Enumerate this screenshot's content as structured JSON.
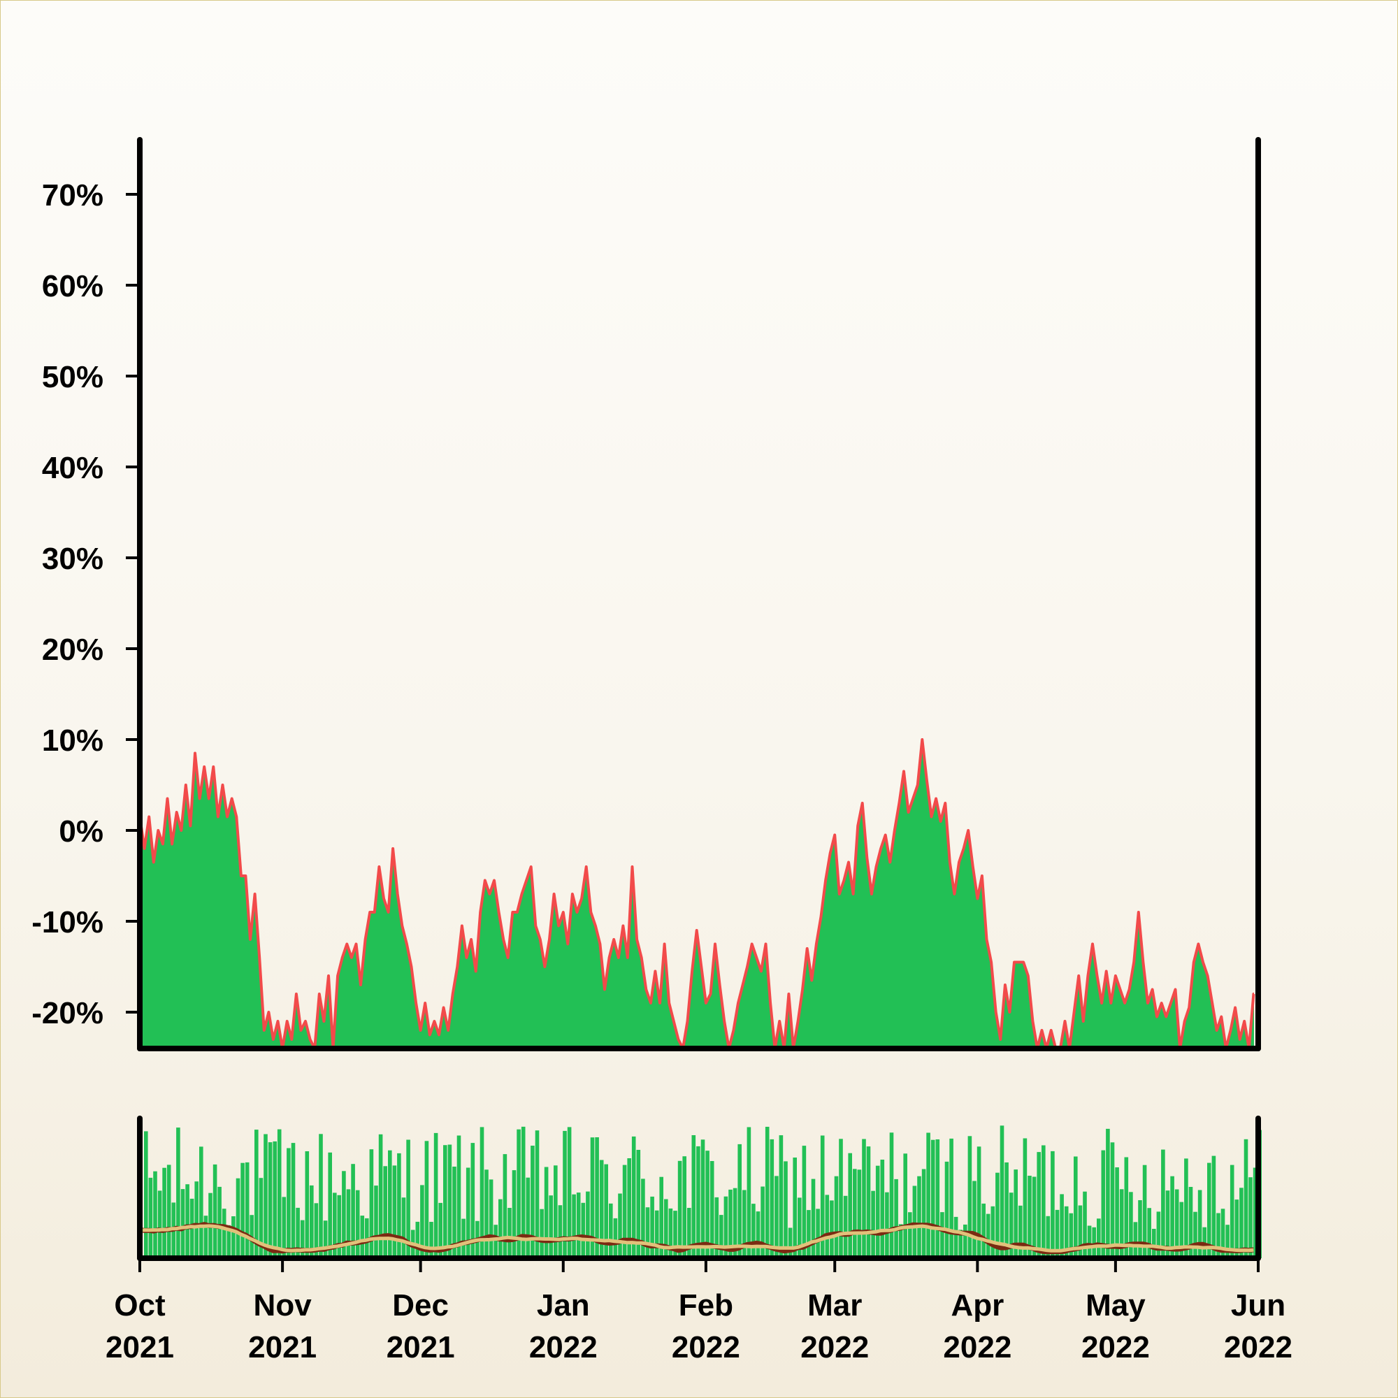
{
  "chart_data": {
    "type": "area",
    "title": "",
    "xlabel": "",
    "ylabel": "",
    "x_range": [
      "2021-10-01",
      "2022-06-01"
    ],
    "ylim": [
      -24,
      76
    ],
    "y_ticks": [
      {
        "value": 70,
        "label": "70%"
      },
      {
        "value": 60,
        "label": "60%"
      },
      {
        "value": 50,
        "label": "50%"
      },
      {
        "value": 40,
        "label": "40%"
      },
      {
        "value": 30,
        "label": "30%"
      },
      {
        "value": 20,
        "label": "20%"
      },
      {
        "value": 10,
        "label": "10%"
      },
      {
        "value": 0,
        "label": "0%"
      },
      {
        "value": -10,
        "label": "-10%"
      },
      {
        "value": -20,
        "label": "-20%"
      }
    ],
    "x_ticks": [
      {
        "date": "2021-10-01",
        "month": "Oct",
        "year": "2021"
      },
      {
        "date": "2021-11-01",
        "month": "Nov",
        "year": "2021"
      },
      {
        "date": "2021-12-01",
        "month": "Dec",
        "year": "2021"
      },
      {
        "date": "2022-01-01",
        "month": "Jan",
        "year": "2022"
      },
      {
        "date": "2022-02-01",
        "month": "Feb",
        "year": "2022"
      },
      {
        "date": "2022-03-01",
        "month": "Mar",
        "year": "2022"
      },
      {
        "date": "2022-04-01",
        "month": "Apr",
        "year": "2022"
      },
      {
        "date": "2022-05-01",
        "month": "May",
        "year": "2022"
      },
      {
        "date": "2022-06-01",
        "month": "Jun",
        "year": "2022"
      }
    ],
    "series": [
      {
        "type": "area",
        "fill_color": "#22c055",
        "line_color": "#f24a4a",
        "points": [
          [
            "2021-10-01",
            1.5
          ],
          [
            "2021-10-02",
            -2
          ],
          [
            "2021-10-03",
            1.5
          ],
          [
            "2021-10-04",
            -3.5
          ],
          [
            "2021-10-05",
            0
          ],
          [
            "2021-10-06",
            -1.5
          ],
          [
            "2021-10-07",
            3.5
          ],
          [
            "2021-10-08",
            -1.5
          ],
          [
            "2021-10-09",
            2
          ],
          [
            "2021-10-10",
            0
          ],
          [
            "2021-10-11",
            5
          ],
          [
            "2021-10-12",
            0.5
          ],
          [
            "2021-10-13",
            8.5
          ],
          [
            "2021-10-14",
            3.5
          ],
          [
            "2021-10-15",
            7
          ],
          [
            "2021-10-16",
            3.5
          ],
          [
            "2021-10-17",
            7
          ],
          [
            "2021-10-18",
            1.5
          ],
          [
            "2021-10-19",
            5
          ],
          [
            "2021-10-20",
            1.5
          ],
          [
            "2021-10-21",
            3.5
          ],
          [
            "2021-10-22",
            1.5
          ],
          [
            "2021-10-23",
            -5
          ],
          [
            "2021-10-24",
            -5
          ],
          [
            "2021-10-25",
            -12
          ],
          [
            "2021-10-26",
            -7
          ],
          [
            "2021-10-27",
            -14
          ],
          [
            "2021-10-28",
            -22
          ],
          [
            "2021-10-29",
            -20
          ],
          [
            "2021-10-30",
            -23
          ],
          [
            "2021-10-31",
            -21
          ],
          [
            "2021-11-01",
            -24
          ],
          [
            "2021-11-02",
            -21
          ],
          [
            "2021-11-03",
            -23
          ],
          [
            "2021-11-04",
            -18
          ],
          [
            "2021-11-05",
            -22
          ],
          [
            "2021-11-06",
            -21
          ],
          [
            "2021-11-07",
            -23
          ],
          [
            "2021-11-08",
            -24
          ],
          [
            "2021-11-09",
            -18
          ],
          [
            "2021-11-10",
            -21
          ],
          [
            "2021-11-11",
            -16
          ],
          [
            "2021-11-12",
            -24
          ],
          [
            "2021-11-13",
            -16
          ],
          [
            "2021-11-14",
            -14
          ],
          [
            "2021-11-15",
            -12.5
          ],
          [
            "2021-11-16",
            -14
          ],
          [
            "2021-11-17",
            -12.5
          ],
          [
            "2021-11-18",
            -17
          ],
          [
            "2021-11-19",
            -12
          ],
          [
            "2021-11-20",
            -9
          ],
          [
            "2021-11-21",
            -9
          ],
          [
            "2021-11-22",
            -4
          ],
          [
            "2021-11-23",
            -7.5
          ],
          [
            "2021-11-24",
            -9
          ],
          [
            "2021-11-25",
            -2
          ],
          [
            "2021-11-26",
            -7
          ],
          [
            "2021-11-27",
            -10.5
          ],
          [
            "2021-11-28",
            -12.5
          ],
          [
            "2021-11-29",
            -15
          ],
          [
            "2021-11-30",
            -19
          ],
          [
            "2021-12-01",
            -22
          ],
          [
            "2021-12-02",
            -19
          ],
          [
            "2021-12-03",
            -22.5
          ],
          [
            "2021-12-04",
            -21
          ],
          [
            "2021-12-05",
            -22.5
          ],
          [
            "2021-12-06",
            -19.5
          ],
          [
            "2021-12-07",
            -22
          ],
          [
            "2021-12-08",
            -18
          ],
          [
            "2021-12-09",
            -15
          ],
          [
            "2021-12-10",
            -10.5
          ],
          [
            "2021-12-11",
            -14
          ],
          [
            "2021-12-12",
            -12
          ],
          [
            "2021-12-13",
            -15.5
          ],
          [
            "2021-12-14",
            -9
          ],
          [
            "2021-12-15",
            -5.5
          ],
          [
            "2021-12-16",
            -7
          ],
          [
            "2021-12-17",
            -5.5
          ],
          [
            "2021-12-18",
            -9
          ],
          [
            "2021-12-19",
            -12
          ],
          [
            "2021-12-20",
            -14
          ],
          [
            "2021-12-21",
            -9
          ],
          [
            "2021-12-22",
            -9
          ],
          [
            "2021-12-23",
            -7
          ],
          [
            "2021-12-24",
            -5.5
          ],
          [
            "2021-12-25",
            -4
          ],
          [
            "2021-12-26",
            -10.5
          ],
          [
            "2021-12-27",
            -12
          ],
          [
            "2021-12-28",
            -15
          ],
          [
            "2021-12-29",
            -12
          ],
          [
            "2021-12-30",
            -7
          ],
          [
            "2021-12-31",
            -10.5
          ],
          [
            "2022-01-01",
            -9
          ],
          [
            "2022-01-02",
            -12.5
          ],
          [
            "2022-01-03",
            -7
          ],
          [
            "2022-01-04",
            -9
          ],
          [
            "2022-01-05",
            -7.5
          ],
          [
            "2022-01-06",
            -4
          ],
          [
            "2022-01-07",
            -9
          ],
          [
            "2022-01-08",
            -10.5
          ],
          [
            "2022-01-09",
            -12.5
          ],
          [
            "2022-01-10",
            -17.5
          ],
          [
            "2022-01-11",
            -14
          ],
          [
            "2022-01-12",
            -12
          ],
          [
            "2022-01-13",
            -14
          ],
          [
            "2022-01-14",
            -10.5
          ],
          [
            "2022-01-15",
            -14
          ],
          [
            "2022-01-16",
            -4
          ],
          [
            "2022-01-17",
            -12
          ],
          [
            "2022-01-18",
            -14
          ],
          [
            "2022-01-19",
            -17.5
          ],
          [
            "2022-01-20",
            -19
          ],
          [
            "2022-01-21",
            -15.5
          ],
          [
            "2022-01-22",
            -19
          ],
          [
            "2022-01-23",
            -12.5
          ],
          [
            "2022-01-24",
            -19
          ],
          [
            "2022-01-25",
            -21
          ],
          [
            "2022-01-26",
            -23
          ],
          [
            "2022-01-27",
            -24
          ],
          [
            "2022-01-28",
            -21
          ],
          [
            "2022-01-29",
            -15.5
          ],
          [
            "2022-01-30",
            -11
          ],
          [
            "2022-01-31",
            -15
          ],
          [
            "2022-02-01",
            -19
          ],
          [
            "2022-02-02",
            -18
          ],
          [
            "2022-02-03",
            -12.5
          ],
          [
            "2022-02-04",
            -17
          ],
          [
            "2022-02-05",
            -21
          ],
          [
            "2022-02-06",
            -24
          ],
          [
            "2022-02-07",
            -22
          ],
          [
            "2022-02-08",
            -19
          ],
          [
            "2022-02-09",
            -17
          ],
          [
            "2022-02-10",
            -15
          ],
          [
            "2022-02-11",
            -12.5
          ],
          [
            "2022-02-12",
            -14
          ],
          [
            "2022-02-13",
            -15.5
          ],
          [
            "2022-02-14",
            -12.5
          ],
          [
            "2022-02-15",
            -19
          ],
          [
            "2022-02-16",
            -24
          ],
          [
            "2022-02-17",
            -21
          ],
          [
            "2022-02-18",
            -24
          ],
          [
            "2022-02-19",
            -18
          ],
          [
            "2022-02-20",
            -24
          ],
          [
            "2022-02-21",
            -21
          ],
          [
            "2022-02-22",
            -17.5
          ],
          [
            "2022-02-23",
            -13
          ],
          [
            "2022-02-24",
            -16.5
          ],
          [
            "2022-02-25",
            -12.5
          ],
          [
            "2022-02-26",
            -9.5
          ],
          [
            "2022-02-27",
            -5.5
          ],
          [
            "2022-02-28",
            -2.5
          ],
          [
            "2022-03-01",
            -0.5
          ],
          [
            "2022-03-02",
            -7
          ],
          [
            "2022-03-03",
            -5.5
          ],
          [
            "2022-03-04",
            -3.5
          ],
          [
            "2022-03-05",
            -7
          ],
          [
            "2022-03-06",
            0.5
          ],
          [
            "2022-03-07",
            3
          ],
          [
            "2022-03-08",
            -3
          ],
          [
            "2022-03-09",
            -7
          ],
          [
            "2022-03-10",
            -4
          ],
          [
            "2022-03-11",
            -2
          ],
          [
            "2022-03-12",
            -0.5
          ],
          [
            "2022-03-13",
            -3.5
          ],
          [
            "2022-03-14",
            0
          ],
          [
            "2022-03-15",
            3
          ],
          [
            "2022-03-16",
            6.5
          ],
          [
            "2022-03-17",
            2
          ],
          [
            "2022-03-18",
            3.5
          ],
          [
            "2022-03-19",
            5
          ],
          [
            "2022-03-20",
            10
          ],
          [
            "2022-03-21",
            5.5
          ],
          [
            "2022-03-22",
            1.5
          ],
          [
            "2022-03-23",
            3.5
          ],
          [
            "2022-03-24",
            1
          ],
          [
            "2022-03-25",
            3
          ],
          [
            "2022-03-26",
            -3.5
          ],
          [
            "2022-03-27",
            -7
          ],
          [
            "2022-03-28",
            -3.5
          ],
          [
            "2022-03-29",
            -2
          ],
          [
            "2022-03-30",
            0
          ],
          [
            "2022-03-31",
            -4
          ],
          [
            "2022-04-01",
            -7.5
          ],
          [
            "2022-04-02",
            -5
          ],
          [
            "2022-04-03",
            -12
          ],
          [
            "2022-04-04",
            -14.5
          ],
          [
            "2022-04-05",
            -20
          ],
          [
            "2022-04-06",
            -23
          ],
          [
            "2022-04-07",
            -17
          ],
          [
            "2022-04-08",
            -20
          ],
          [
            "2022-04-09",
            -14.5
          ],
          [
            "2022-04-10",
            -14.5
          ],
          [
            "2022-04-11",
            -14.5
          ],
          [
            "2022-04-12",
            -16
          ],
          [
            "2022-04-13",
            -21
          ],
          [
            "2022-04-14",
            -24
          ],
          [
            "2022-04-15",
            -22
          ],
          [
            "2022-04-16",
            -24
          ],
          [
            "2022-04-17",
            -22
          ],
          [
            "2022-04-18",
            -24
          ],
          [
            "2022-04-19",
            -24
          ],
          [
            "2022-04-20",
            -21
          ],
          [
            "2022-04-21",
            -24
          ],
          [
            "2022-04-22",
            -20
          ],
          [
            "2022-04-23",
            -16
          ],
          [
            "2022-04-24",
            -21
          ],
          [
            "2022-04-25",
            -16
          ],
          [
            "2022-04-26",
            -12.5
          ],
          [
            "2022-04-27",
            -16
          ],
          [
            "2022-04-28",
            -19
          ],
          [
            "2022-04-29",
            -15.5
          ],
          [
            "2022-04-30",
            -19
          ],
          [
            "2022-05-01",
            -16
          ],
          [
            "2022-05-02",
            -17.5
          ],
          [
            "2022-05-03",
            -19
          ],
          [
            "2022-05-04",
            -17.5
          ],
          [
            "2022-05-05",
            -14.5
          ],
          [
            "2022-05-06",
            -9
          ],
          [
            "2022-05-07",
            -14.5
          ],
          [
            "2022-05-08",
            -19
          ],
          [
            "2022-05-09",
            -17.5
          ],
          [
            "2022-05-10",
            -20.5
          ],
          [
            "2022-05-11",
            -19
          ],
          [
            "2022-05-12",
            -20.5
          ],
          [
            "2022-05-13",
            -19
          ],
          [
            "2022-05-14",
            -17.5
          ],
          [
            "2022-05-15",
            -24
          ],
          [
            "2022-05-16",
            -21
          ],
          [
            "2022-05-17",
            -19.5
          ],
          [
            "2022-05-18",
            -14.5
          ],
          [
            "2022-05-19",
            -12.5
          ],
          [
            "2022-05-20",
            -14.5
          ],
          [
            "2022-05-21",
            -16
          ],
          [
            "2022-05-22",
            -19
          ],
          [
            "2022-05-23",
            -22
          ],
          [
            "2022-05-24",
            -20.5
          ],
          [
            "2022-05-25",
            -24
          ],
          [
            "2022-05-26",
            -22
          ],
          [
            "2022-05-27",
            -19.5
          ],
          [
            "2022-05-28",
            -23
          ],
          [
            "2022-05-29",
            -21
          ],
          [
            "2022-05-30",
            -24
          ],
          [
            "2022-05-31",
            -18
          ]
        ]
      }
    ],
    "volume_panel": {
      "type": "bar",
      "bar_color": "#22c055",
      "moving_average_colors": [
        "#7b2a12",
        "#e2c17a"
      ],
      "note_shape": "daily green bars with two overlaid smoothed lines near the base"
    }
  }
}
